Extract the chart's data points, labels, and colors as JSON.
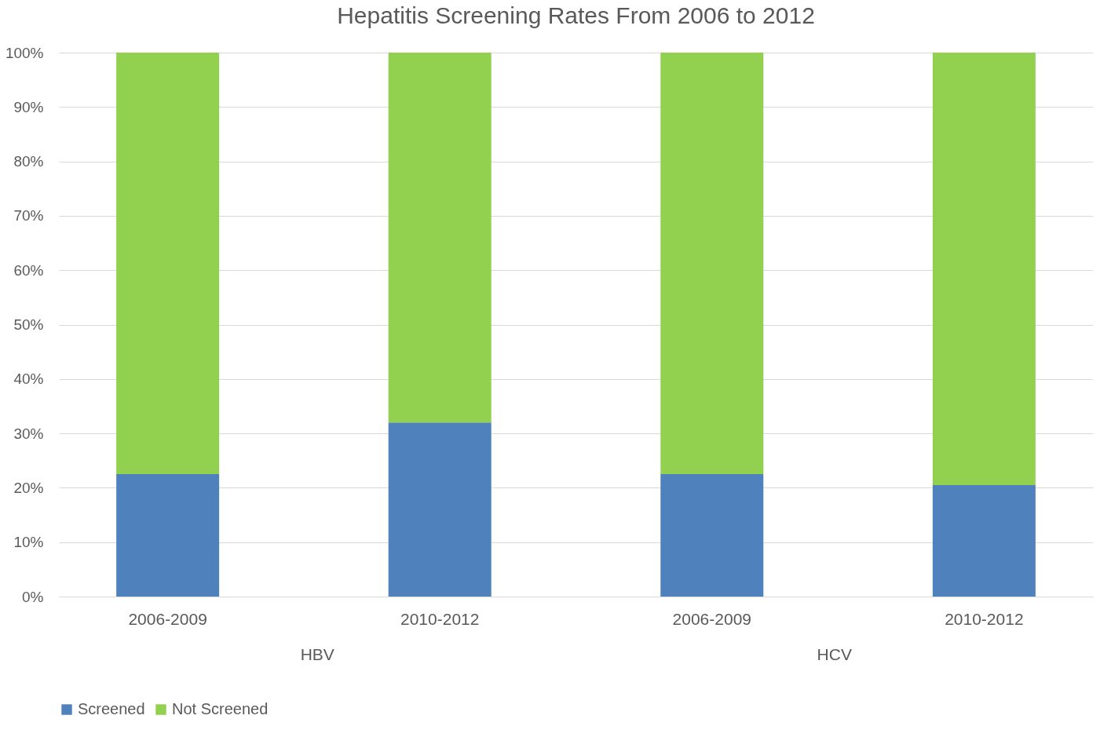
{
  "chart_data": {
    "type": "bar",
    "title": "Hepatitis Screening Rates From 2006 to 2012",
    "categories": [
      "2006-2009",
      "2010-2012",
      "2006-2009",
      "2010-2012"
    ],
    "stacked": true,
    "series": [
      {
        "name": "Screened",
        "color": "#4f81bd",
        "values": [
          22.5,
          32,
          22.5,
          20.5
        ]
      },
      {
        "name": "Not Screened",
        "color": "#92d050",
        "values": [
          77.5,
          68,
          77.5,
          79.5
        ]
      }
    ],
    "ylim": [
      0,
      100
    ],
    "yticks": [
      {
        "value": 0,
        "label": "0%"
      },
      {
        "value": 10,
        "label": "10%"
      },
      {
        "value": 20,
        "label": "20%"
      },
      {
        "value": 30,
        "label": "30%"
      },
      {
        "value": 40,
        "label": "40%"
      },
      {
        "value": 50,
        "label": "50%"
      },
      {
        "value": 60,
        "label": "60%"
      },
      {
        "value": 70,
        "label": "70%"
      },
      {
        "value": 80,
        "label": "80%"
      },
      {
        "value": 90,
        "label": "90%"
      },
      {
        "value": 100,
        "label": "100%"
      }
    ],
    "grid": true,
    "legend": "bottom",
    "annotations": [
      "HBV",
      "HCV"
    ]
  }
}
